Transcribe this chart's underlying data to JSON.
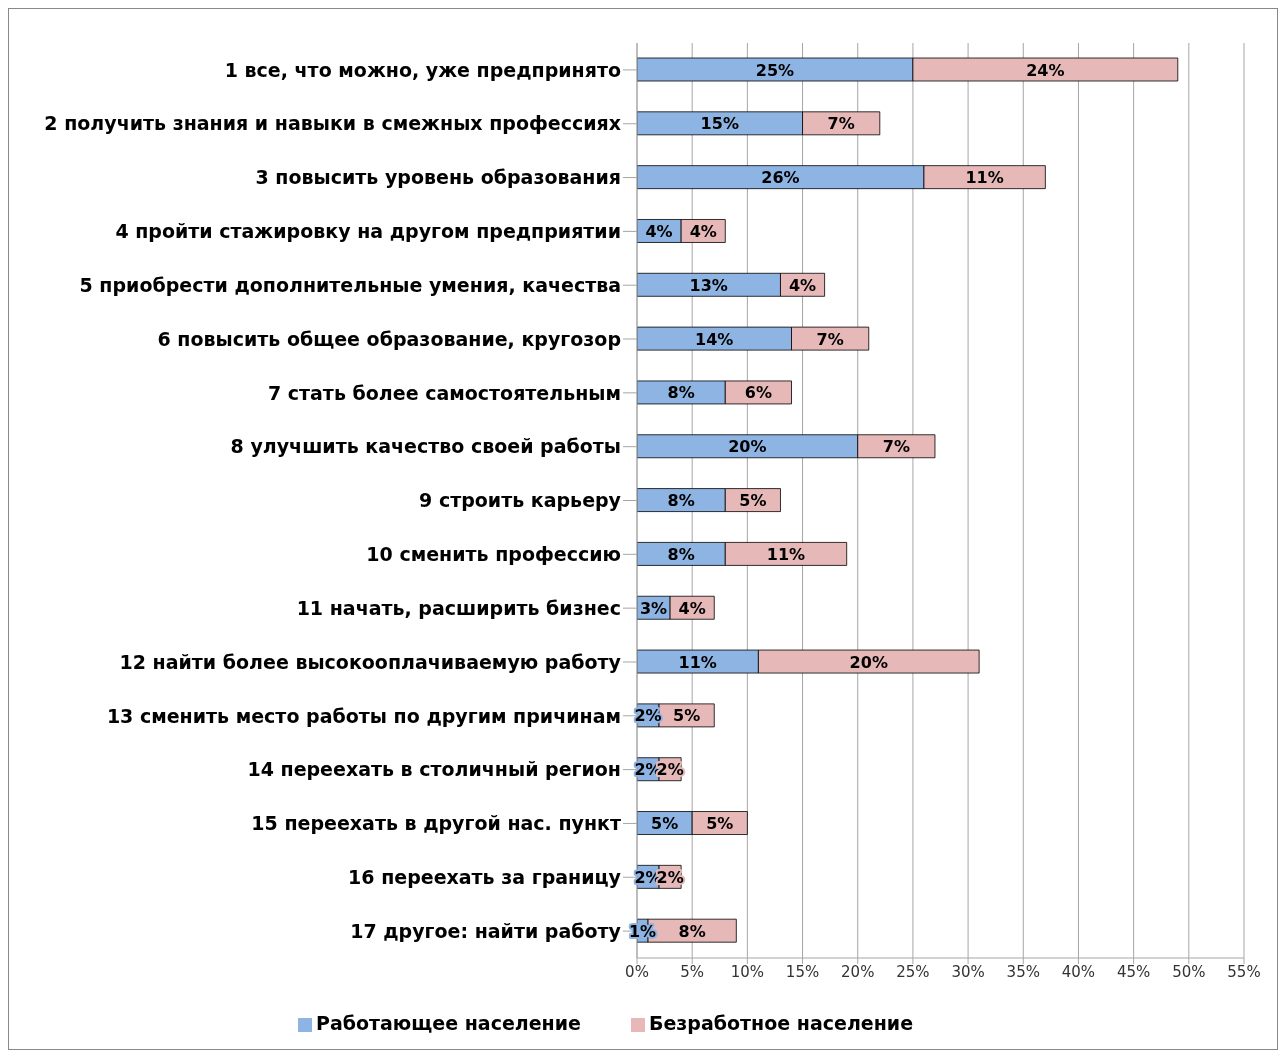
{
  "chart_data": {
    "type": "bar",
    "orientation": "horizontal",
    "stacked": true,
    "grid": "x",
    "legend": "bottom",
    "categories": [
      "1 все, что можно, уже предпринято",
      "2 получить знания и навыки в смежных профессиях",
      "3 повысить уровень образования",
      "4 пройти стажировку на другом предприятии",
      "5 приобрести дополнительные умения, качества",
      "6 повысить общее образование, кругозор",
      "7 стать более самостоятельным",
      "8 улучшить качество своей работы",
      "9 строить карьеру",
      "10 сменить профессию",
      "11 начать, расширить бизнес",
      "12 найти более высокооплачиваемую работу",
      "13 сменить место работы по другим причинам",
      "14 переехать в столичный регион",
      "15 переехать в другой нас. пункт",
      "16 переехать за границу",
      "17 другое: найти работу"
    ],
    "series": [
      {
        "name": "Работающее население",
        "color": "#8eb4e3",
        "values": [
          25,
          15,
          26,
          4,
          13,
          14,
          8,
          20,
          8,
          8,
          3,
          11,
          2,
          2,
          5,
          2,
          1
        ],
        "value_labels": [
          "25%",
          "15%",
          "26%",
          "4%",
          "13%",
          "14%",
          "8%",
          "20%",
          "8%",
          "8%",
          "3%",
          "11%",
          "2%",
          "2%",
          "5%",
          "2%",
          "1%"
        ]
      },
      {
        "name": "Безработное население",
        "color": "#e6b9b8",
        "values": [
          24,
          7,
          11,
          4,
          4,
          7,
          6,
          7,
          5,
          11,
          4,
          20,
          5,
          2,
          5,
          2,
          8
        ],
        "value_labels": [
          "24%",
          "7%",
          "11%",
          "4%",
          "4%",
          "7%",
          "6%",
          "7%",
          "5%",
          "11%",
          "4%",
          "20%",
          "5%",
          "2%",
          "5%",
          "2%",
          "8%"
        ]
      }
    ],
    "xlim": [
      0,
      55
    ],
    "xticks": [
      {
        "value": 0,
        "label": "0%"
      },
      {
        "value": 5,
        "label": "5%"
      },
      {
        "value": 10,
        "label": "10%"
      },
      {
        "value": 15,
        "label": "15%"
      },
      {
        "value": 20,
        "label": "20%"
      },
      {
        "value": 25,
        "label": "25%"
      },
      {
        "value": 30,
        "label": "30%"
      },
      {
        "value": 35,
        "label": "35%"
      },
      {
        "value": 40,
        "label": "40%"
      },
      {
        "value": 45,
        "label": "45%"
      },
      {
        "value": 50,
        "label": "50%"
      },
      {
        "value": 55,
        "label": "55%"
      }
    ]
  }
}
